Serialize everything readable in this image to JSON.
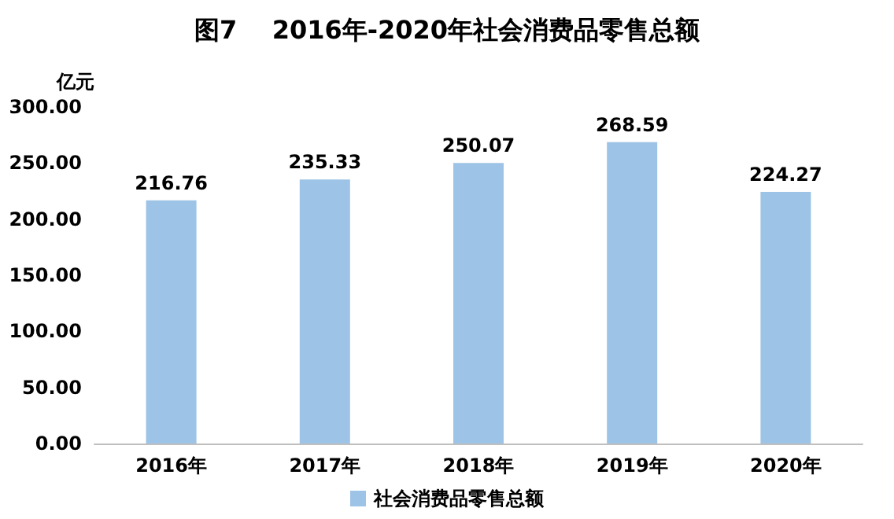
{
  "chart_data": {
    "type": "bar",
    "title": "图7    2016年-2020年社会消费品零售总额",
    "ylabel": "亿元",
    "categories": [
      "2016年",
      "2017年",
      "2018年",
      "2019年",
      "2020年"
    ],
    "series": [
      {
        "name": "社会消费品零售总额",
        "color": "#9dc3e6",
        "values": [
          216.76,
          235.33,
          250.07,
          268.59,
          224.27
        ]
      }
    ],
    "ylim": [
      0,
      300
    ],
    "yticks": [
      {
        "value": 0,
        "label": "0.00"
      },
      {
        "value": 50,
        "label": "50.00"
      },
      {
        "value": 100,
        "label": "100.00"
      },
      {
        "value": 150,
        "label": "150.00"
      },
      {
        "value": 200,
        "label": "200.00"
      },
      {
        "value": 250,
        "label": "250.00"
      },
      {
        "value": 300,
        "label": "300.00"
      }
    ],
    "data_labels": true,
    "legend": "bottom",
    "grid": false
  }
}
